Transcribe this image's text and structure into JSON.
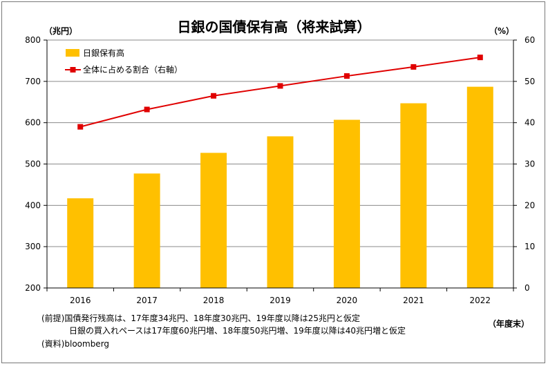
{
  "chart_data": {
    "type": "bar",
    "title": "日銀の国債保有高（将来試算）",
    "categories": [
      "2016",
      "2017",
      "2018",
      "2019",
      "2020",
      "2021",
      "2022"
    ],
    "series": [
      {
        "name": "日銀保有高",
        "type": "bar",
        "axis": "left",
        "values": [
          417,
          477,
          527,
          567,
          607,
          647,
          687
        ],
        "color": "#FFC000"
      },
      {
        "name": "全体に占める割合（右軸）",
        "type": "line",
        "axis": "right",
        "values": [
          39,
          43.2,
          46.5,
          48.9,
          51.3,
          53.5,
          55.8
        ],
        "color": "#E00000"
      }
    ],
    "y_left": {
      "unit": "（兆円）",
      "min": 200,
      "max": 800,
      "ticks": [
        200,
        300,
        400,
        500,
        600,
        700,
        800
      ]
    },
    "y_right": {
      "unit": "（%）",
      "min": 0,
      "max": 60,
      "ticks": [
        0,
        10,
        20,
        30,
        40,
        50,
        60
      ]
    },
    "x_unit": "（年度末）",
    "grid": true,
    "legend_position": "top-left"
  },
  "notes": [
    "(前提)国債発行残高は、17年度34兆円、18年度30兆円、19年度以降は25兆円と仮定",
    "日銀の買入れペースは17年度60兆円増、18年度50兆円増、19年度以降は40兆円増と仮定",
    "(資料)bloomberg"
  ]
}
